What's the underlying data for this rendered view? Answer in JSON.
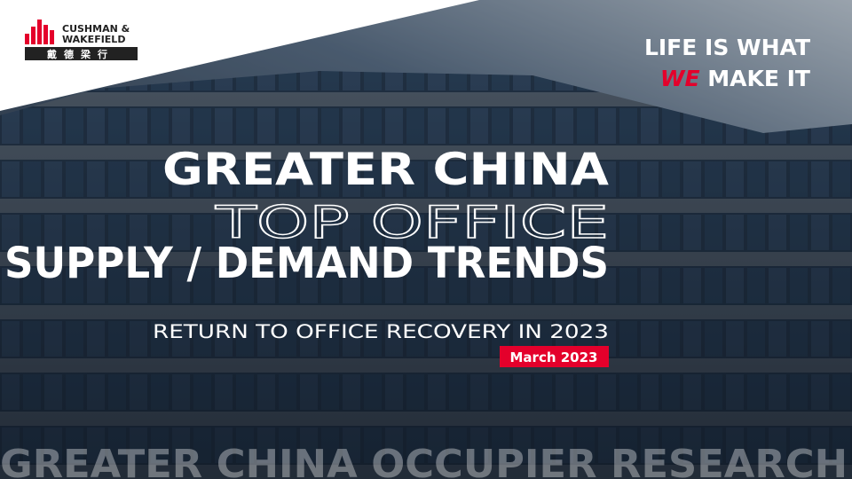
{
  "logo": {
    "line1": "CUSHMAN &",
    "line2": "WAKEFIELD",
    "chinese": "戴德梁行"
  },
  "tagline": {
    "line1": "LIFE IS WHAT",
    "highlight": "WE",
    "rest": "MAKE IT"
  },
  "title": {
    "line1": "GREATER CHINA",
    "line2": "TOP OFFICE",
    "line3": "SUPPLY / DEMAND TRENDS"
  },
  "subtitle": "RETURN TO OFFICE RECOVERY IN 2023",
  "date": "March 2023",
  "footer": "GREATER CHINA OCCUPIER RESEARCH"
}
